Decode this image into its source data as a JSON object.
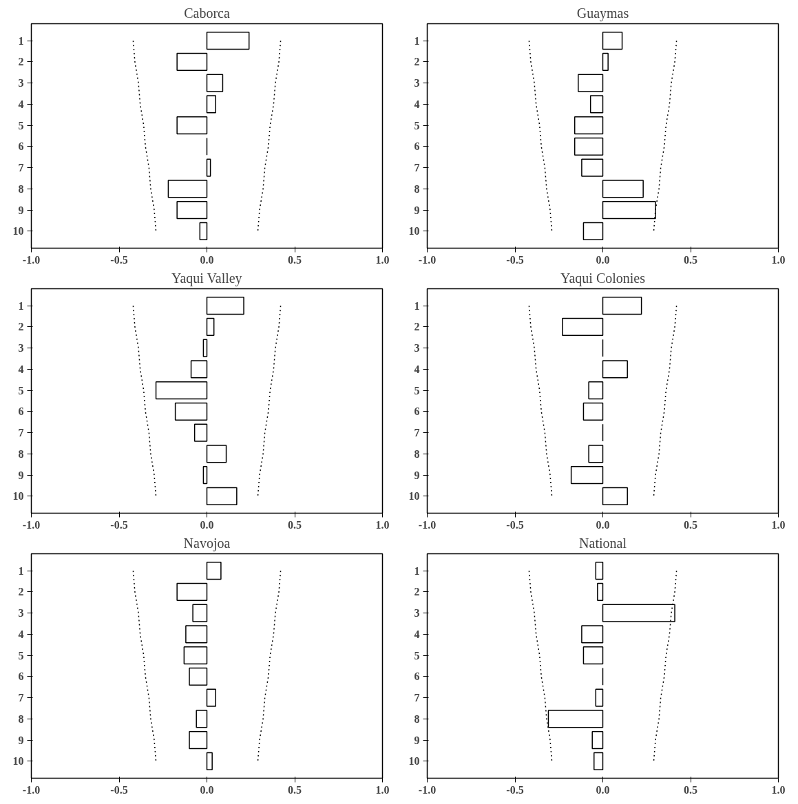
{
  "chart_data": [
    {
      "type": "bar",
      "orientation": "horizontal",
      "title": "Caborca",
      "categories": [
        "1",
        "2",
        "3",
        "4",
        "5",
        "6",
        "7",
        "8",
        "9",
        "10"
      ],
      "xlim": [
        -1.0,
        1.0
      ],
      "xticks": [
        {
          "value": -1.0,
          "label": "-1.0"
        },
        {
          "value": -0.5,
          "label": "-0.5"
        },
        {
          "value": 0.0,
          "label": "0.0"
        },
        {
          "value": 0.5,
          "label": "0.5"
        },
        {
          "value": 1.0,
          "label": "1.0"
        }
      ],
      "series": [
        {
          "color": "#000000",
          "values": [
            0.24,
            -0.17,
            0.09,
            0.05,
            -0.17,
            0.0,
            0.02,
            -0.22,
            -0.17,
            -0.04
          ]
        },
        {
          "type": "line",
          "line_style": "dotted",
          "color": "#000000",
          "values": [
            -0.42,
            -0.41,
            -0.39,
            -0.38,
            -0.36,
            -0.35,
            -0.33,
            -0.32,
            -0.3,
            -0.29
          ]
        },
        {
          "type": "line",
          "line_style": "dotted",
          "color": "#000000",
          "values": [
            0.42,
            0.41,
            0.39,
            0.38,
            0.36,
            0.35,
            0.33,
            0.32,
            0.3,
            0.29
          ]
        }
      ]
    },
    {
      "type": "bar",
      "orientation": "horizontal",
      "title": "Guaymas",
      "categories": [
        "1",
        "2",
        "3",
        "4",
        "5",
        "6",
        "7",
        "8",
        "9",
        "10"
      ],
      "xlim": [
        -1.0,
        1.0
      ],
      "xticks": [
        {
          "value": -1.0,
          "label": "-1.0"
        },
        {
          "value": -0.5,
          "label": "-0.5"
        },
        {
          "value": 0.0,
          "label": "0.0"
        },
        {
          "value": 0.5,
          "label": "0.5"
        },
        {
          "value": 1.0,
          "label": "1.0"
        }
      ],
      "series": [
        {
          "color": "#000000",
          "values": [
            0.11,
            0.03,
            -0.14,
            -0.07,
            -0.16,
            -0.16,
            -0.12,
            0.23,
            0.3,
            -0.11
          ]
        },
        {
          "type": "line",
          "line_style": "dotted",
          "color": "#000000",
          "values": [
            -0.42,
            -0.41,
            -0.39,
            -0.38,
            -0.36,
            -0.35,
            -0.33,
            -0.32,
            -0.3,
            -0.29
          ]
        },
        {
          "type": "line",
          "line_style": "dotted",
          "color": "#000000",
          "values": [
            0.42,
            0.41,
            0.39,
            0.38,
            0.36,
            0.35,
            0.33,
            0.32,
            0.3,
            0.29
          ]
        }
      ]
    },
    {
      "type": "bar",
      "orientation": "horizontal",
      "title": "Yaqui Valley",
      "categories": [
        "1",
        "2",
        "3",
        "4",
        "5",
        "6",
        "7",
        "8",
        "9",
        "10"
      ],
      "xlim": [
        -1.0,
        1.0
      ],
      "xticks": [
        {
          "value": -1.0,
          "label": "-1.0"
        },
        {
          "value": -0.5,
          "label": "-0.5"
        },
        {
          "value": 0.0,
          "label": "0.0"
        },
        {
          "value": 0.5,
          "label": "0.5"
        },
        {
          "value": 1.0,
          "label": "1.0"
        }
      ],
      "series": [
        {
          "color": "#000000",
          "values": [
            0.21,
            0.04,
            -0.02,
            -0.09,
            -0.29,
            -0.18,
            -0.07,
            0.11,
            -0.02,
            0.17
          ]
        },
        {
          "type": "line",
          "line_style": "dotted",
          "color": "#000000",
          "values": [
            -0.42,
            -0.41,
            -0.39,
            -0.38,
            -0.36,
            -0.35,
            -0.33,
            -0.32,
            -0.3,
            -0.29
          ]
        },
        {
          "type": "line",
          "line_style": "dotted",
          "color": "#000000",
          "values": [
            0.42,
            0.41,
            0.39,
            0.38,
            0.36,
            0.35,
            0.33,
            0.32,
            0.3,
            0.29
          ]
        }
      ]
    },
    {
      "type": "bar",
      "orientation": "horizontal",
      "title": "Yaqui Colonies",
      "categories": [
        "1",
        "2",
        "3",
        "4",
        "5",
        "6",
        "7",
        "8",
        "9",
        "10"
      ],
      "xlim": [
        -1.0,
        1.0
      ],
      "xticks": [
        {
          "value": -1.0,
          "label": "-1.0"
        },
        {
          "value": -0.5,
          "label": "-0.5"
        },
        {
          "value": 0.0,
          "label": "0.0"
        },
        {
          "value": 0.5,
          "label": "0.5"
        },
        {
          "value": 1.0,
          "label": "1.0"
        }
      ],
      "series": [
        {
          "color": "#000000",
          "values": [
            0.22,
            -0.23,
            0.0,
            0.14,
            -0.08,
            -0.11,
            0.0,
            -0.08,
            -0.18,
            0.14
          ]
        },
        {
          "type": "line",
          "line_style": "dotted",
          "color": "#000000",
          "values": [
            -0.42,
            -0.41,
            -0.39,
            -0.38,
            -0.36,
            -0.35,
            -0.33,
            -0.32,
            -0.3,
            -0.29
          ]
        },
        {
          "type": "line",
          "line_style": "dotted",
          "color": "#000000",
          "values": [
            0.42,
            0.41,
            0.39,
            0.38,
            0.36,
            0.35,
            0.33,
            0.32,
            0.3,
            0.29
          ]
        }
      ]
    },
    {
      "type": "bar",
      "orientation": "horizontal",
      "title": "Navojoa",
      "categories": [
        "1",
        "2",
        "3",
        "4",
        "5",
        "6",
        "7",
        "8",
        "9",
        "10"
      ],
      "xlim": [
        -1.0,
        1.0
      ],
      "xticks": [
        {
          "value": -1.0,
          "label": "-1.0"
        },
        {
          "value": -0.5,
          "label": "-0.5"
        },
        {
          "value": 0.0,
          "label": "0.0"
        },
        {
          "value": 0.5,
          "label": "0.5"
        },
        {
          "value": 1.0,
          "label": "1.0"
        }
      ],
      "series": [
        {
          "color": "#000000",
          "values": [
            0.08,
            -0.17,
            -0.08,
            -0.12,
            -0.13,
            -0.1,
            0.05,
            -0.06,
            -0.1,
            0.03
          ]
        },
        {
          "type": "line",
          "line_style": "dotted",
          "color": "#000000",
          "values": [
            -0.42,
            -0.41,
            -0.39,
            -0.38,
            -0.36,
            -0.35,
            -0.33,
            -0.32,
            -0.3,
            -0.29
          ]
        },
        {
          "type": "line",
          "line_style": "dotted",
          "color": "#000000",
          "values": [
            0.42,
            0.41,
            0.39,
            0.38,
            0.36,
            0.35,
            0.33,
            0.32,
            0.3,
            0.29
          ]
        }
      ]
    },
    {
      "type": "bar",
      "orientation": "horizontal",
      "title": "National",
      "categories": [
        "1",
        "2",
        "3",
        "4",
        "5",
        "6",
        "7",
        "8",
        "9",
        "10"
      ],
      "xlim": [
        -1.0,
        1.0
      ],
      "xticks": [
        {
          "value": -1.0,
          "label": "-1.0"
        },
        {
          "value": -0.5,
          "label": "-0.5"
        },
        {
          "value": 0.0,
          "label": "0.0"
        },
        {
          "value": 0.5,
          "label": "0.5"
        },
        {
          "value": 1.0,
          "label": "1.0"
        }
      ],
      "series": [
        {
          "color": "#000000",
          "values": [
            -0.04,
            -0.03,
            0.41,
            -0.12,
            -0.11,
            0.0,
            -0.04,
            -0.31,
            -0.06,
            -0.05
          ]
        },
        {
          "type": "line",
          "line_style": "dotted",
          "color": "#000000",
          "values": [
            -0.42,
            -0.41,
            -0.39,
            -0.38,
            -0.36,
            -0.35,
            -0.33,
            -0.32,
            -0.3,
            -0.29
          ]
        },
        {
          "type": "line",
          "line_style": "dotted",
          "color": "#000000",
          "values": [
            0.42,
            0.41,
            0.39,
            0.38,
            0.36,
            0.35,
            0.33,
            0.32,
            0.3,
            0.29
          ]
        }
      ]
    }
  ]
}
